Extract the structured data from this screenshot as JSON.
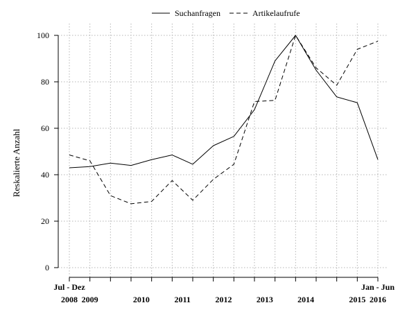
{
  "chart_data": {
    "type": "line",
    "ylabel": "Reskalierte Anzahl",
    "ylim": [
      0,
      100
    ],
    "y_ticks": [
      0,
      20,
      40,
      60,
      80,
      100
    ],
    "grid": true,
    "legend_position": "top",
    "x_ticks": [
      {
        "x": 0,
        "lines": [
          "Jul - Dez",
          "2008"
        ]
      },
      {
        "x": 1,
        "lines": [
          "",
          "2009"
        ]
      },
      {
        "x": 3.5,
        "lines": [
          "",
          "2010"
        ]
      },
      {
        "x": 5.5,
        "lines": [
          "",
          "2011"
        ]
      },
      {
        "x": 7.5,
        "lines": [
          "",
          "2012"
        ]
      },
      {
        "x": 9.5,
        "lines": [
          "",
          "2013"
        ]
      },
      {
        "x": 11.5,
        "lines": [
          "",
          "2014"
        ]
      },
      {
        "x": 14,
        "lines": [
          "",
          "2015"
        ]
      },
      {
        "x": 15,
        "lines": [
          "Jan - Jun",
          "2016"
        ]
      }
    ],
    "x": [
      0,
      1,
      2,
      3,
      4,
      5,
      6,
      7,
      8,
      9,
      10,
      11,
      12,
      13,
      14,
      15
    ],
    "series": [
      {
        "name": "Suchanfragen",
        "dash": "solid",
        "values": [
          43,
          43.5,
          45,
          44,
          46.5,
          48.5,
          44.5,
          52.5,
          56.5,
          68,
          89,
          100,
          85,
          73.5,
          71,
          46.5
        ]
      },
      {
        "name": "Artikelaufrufe",
        "dash": "dashed",
        "values": [
          48.5,
          46,
          31,
          27.5,
          28.5,
          37.5,
          29,
          38,
          44.5,
          71.5,
          72,
          100,
          86,
          78.5,
          94,
          97.5
        ]
      }
    ]
  }
}
